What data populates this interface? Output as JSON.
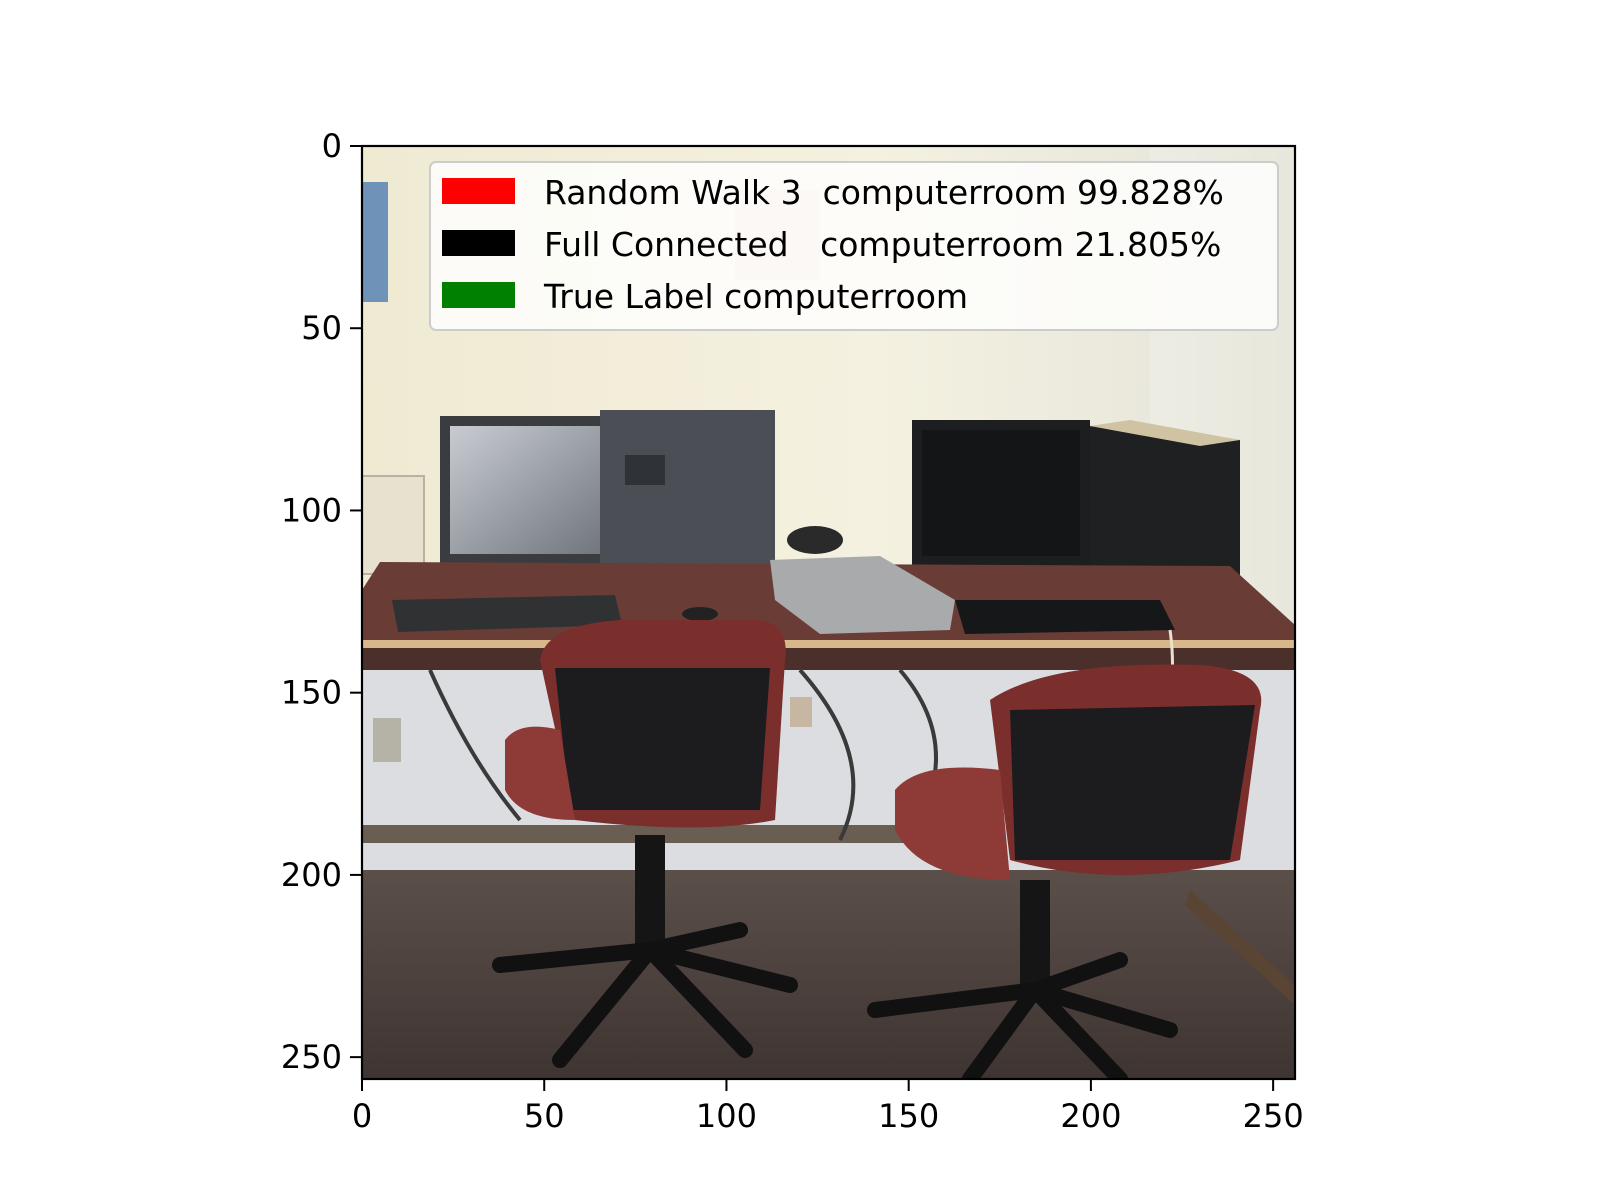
{
  "chart_data": {
    "type": "image",
    "image_size": [
      256,
      256
    ],
    "xlim": [
      0,
      256
    ],
    "ylim": [
      256,
      0
    ],
    "x_ticks": [
      0,
      50,
      100,
      150,
      200,
      250
    ],
    "y_ticks": [
      0,
      50,
      100,
      150,
      200,
      250
    ],
    "legend_placement": "upper-right",
    "legend": [
      {
        "label": "Random Walk 3  computerroom 99.828%",
        "color": "#ff0000"
      },
      {
        "label": "Full Connected   computerroom 21.805%",
        "color": "#000000"
      },
      {
        "label": "True Label computerroom",
        "color": "#008000"
      }
    ],
    "scene": "computer room photo: desk with two monitors, two towers, keyboards, two red office chairs"
  }
}
